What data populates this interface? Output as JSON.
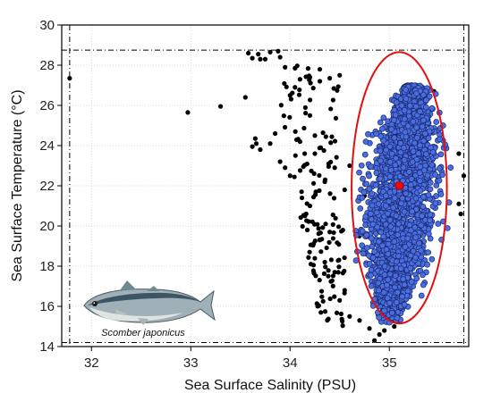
{
  "chart_data": {
    "type": "scatter",
    "xlabel": "Sea Surface Salinity (PSU)",
    "ylabel": "Sea Surface Temperature (°C)",
    "xlim": [
      31.7,
      35.8
    ],
    "ylim": [
      14,
      30
    ],
    "xticks": [
      "32",
      "33",
      "34",
      "35"
    ],
    "xtick_values": [
      32,
      33,
      34,
      35
    ],
    "yticks": [
      "14",
      "16",
      "18",
      "20",
      "22",
      "24",
      "26",
      "28",
      "30"
    ],
    "ytick_values": [
      14,
      16,
      18,
      20,
      22,
      24,
      26,
      28,
      30
    ],
    "grid": true,
    "annotation": "Scomber japonicus",
    "reference_lines": {
      "x_min": 31.78,
      "x_max": 35.75,
      "y_min": 14.2,
      "y_max": 28.75
    },
    "centroid": {
      "x": 35.1,
      "y": 22.0
    },
    "ellipse": {
      "cx": 35.1,
      "cy": 21.9,
      "half_width_x": 0.48,
      "half_height_y": 6.75
    },
    "series": [
      {
        "color": "#000000",
        "points": [
          [
            31.78,
            27.35
          ],
          [
            32.97,
            25.65
          ],
          [
            33.3,
            25.95
          ],
          [
            33.55,
            26.4
          ],
          [
            33.58,
            28.6
          ],
          [
            33.62,
            28.35
          ],
          [
            33.68,
            28.55
          ],
          [
            33.7,
            28.3
          ],
          [
            33.75,
            28.3
          ],
          [
            33.8,
            28.65
          ],
          [
            33.88,
            28.7
          ],
          [
            33.9,
            28.4
          ],
          [
            33.95,
            27.9
          ],
          [
            34.05,
            27.85
          ],
          [
            33.65,
            24.35
          ],
          [
            33.62,
            23.95
          ],
          [
            33.66,
            24.1
          ],
          [
            33.7,
            23.8
          ],
          [
            33.8,
            24.1
          ],
          [
            33.85,
            24.6
          ],
          [
            33.9,
            23.2
          ],
          [
            33.95,
            22.9
          ],
          [
            34.0,
            22.5
          ],
          [
            34.1,
            24.2
          ],
          [
            34.12,
            21.4
          ],
          [
            34.15,
            20.5
          ],
          [
            34.2,
            21.0
          ],
          [
            34.25,
            24.5
          ],
          [
            34.3,
            19.3
          ],
          [
            34.35,
            18.2
          ],
          [
            34.4,
            19.7
          ],
          [
            34.45,
            17.7
          ],
          [
            34.5,
            16.3
          ],
          [
            34.55,
            16.8
          ],
          [
            34.6,
            15.5
          ],
          [
            34.7,
            15.3
          ],
          [
            34.8,
            14.9
          ],
          [
            34.85,
            14.3
          ],
          [
            34.9,
            14.6
          ],
          [
            34.95,
            14.8
          ],
          [
            35.05,
            15.0
          ],
          [
            35.3,
            24.9
          ],
          [
            35.45,
            26.7
          ],
          [
            35.7,
            21.1
          ],
          [
            35.72,
            20.6
          ],
          [
            35.75,
            22.5
          ],
          [
            35.7,
            23.6
          ],
          [
            34.9,
            19.9
          ],
          [
            34.85,
            20.2
          ],
          [
            34.7,
            19.5
          ],
          [
            34.75,
            21.5
          ],
          [
            34.6,
            23.0
          ],
          [
            34.55,
            21.8
          ],
          [
            34.45,
            22.9
          ],
          [
            34.35,
            22.2
          ],
          [
            34.25,
            23.6
          ],
          [
            34.2,
            25.5
          ],
          [
            34.0,
            26.5
          ],
          [
            34.05,
            26.9
          ],
          [
            34.1,
            27.3
          ],
          [
            34.2,
            27.4
          ],
          [
            34.3,
            27.2
          ],
          [
            34.4,
            27.35
          ],
          [
            34.5,
            27.5
          ]
        ]
      },
      {
        "color": "#4a6ee0",
        "points": []
      },
      {
        "color": "#ff0000",
        "points": [
          [
            35.1,
            22.0
          ]
        ]
      }
    ]
  }
}
